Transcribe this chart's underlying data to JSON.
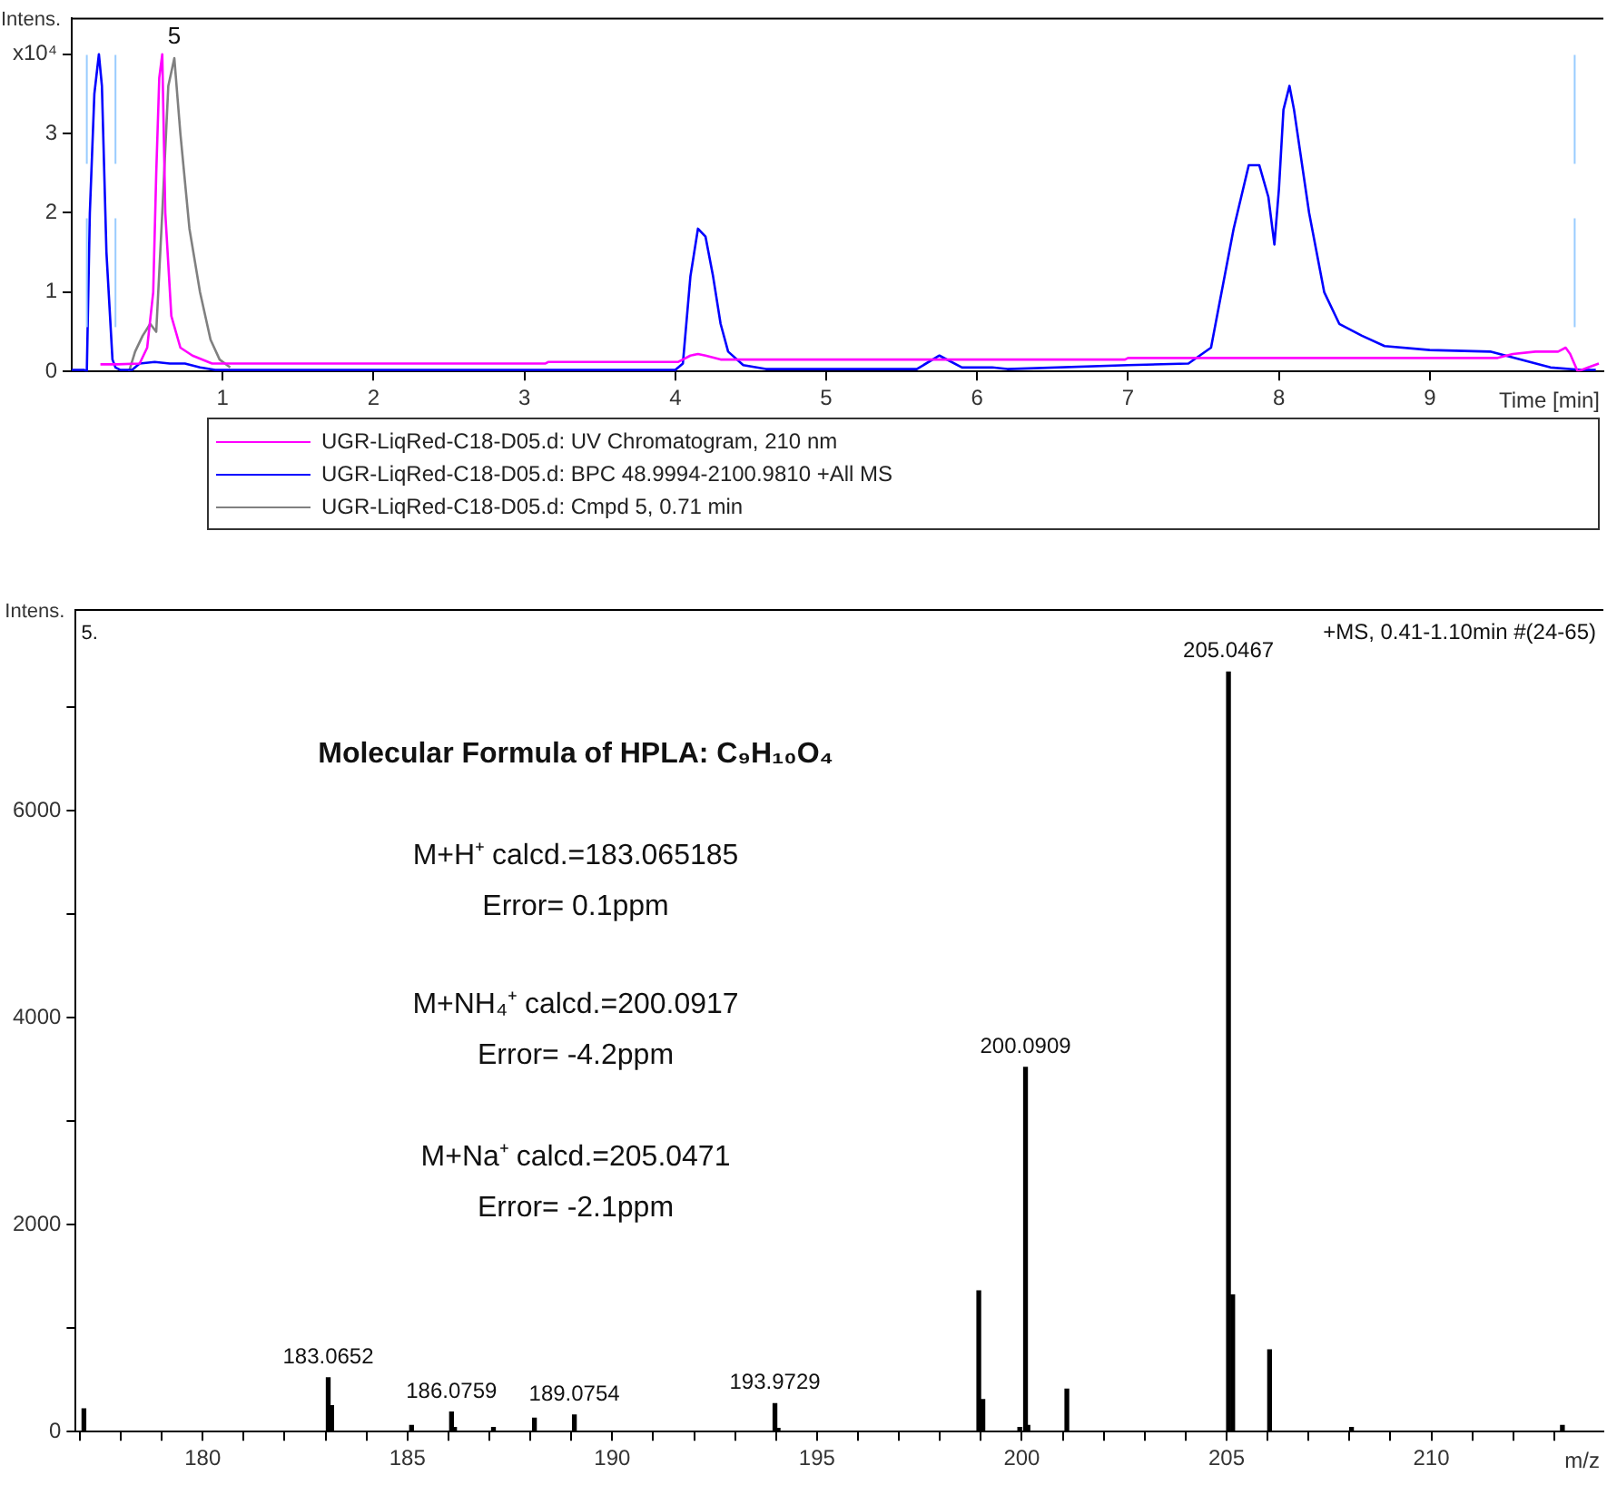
{
  "chart_data": [
    {
      "type": "line",
      "ylabel": "Intens.",
      "xlabel": "Time [min]",
      "xlim": [
        0,
        10.15
      ],
      "ylim": [
        0,
        4.45
      ],
      "xticks": [
        1,
        2,
        3,
        4,
        5,
        6,
        7,
        8,
        9
      ],
      "yticks": [
        0,
        1,
        2,
        3,
        {
          "value": 4,
          "label": "x10⁴"
        }
      ],
      "grid": false,
      "legend": "bottom",
      "annotations": [
        {
          "text": "5",
          "x": 0.68,
          "y": 3.95
        }
      ],
      "ref_lines": [
        {
          "axis": "x",
          "value": 0.1,
          "color": "#99ccff",
          "line_style": "dashed"
        },
        {
          "axis": "x",
          "value": 0.29,
          "color": "#99ccff",
          "line_style": "dashed"
        },
        {
          "axis": "x",
          "value": 9.96,
          "color": "#99ccff",
          "line_style": "dashed"
        }
      ],
      "series": [
        {
          "name": "UGR-LiqRed-C18-D05.d: UV Chromatogram, 210 nm",
          "color": "#ff00ff",
          "x": [
            0.19,
            0.3,
            0.45,
            0.5,
            0.54,
            0.56,
            0.58,
            0.6,
            0.62,
            0.66,
            0.72,
            0.8,
            0.93,
            1.1,
            3.14,
            3.16,
            4.02,
            4.1,
            4.15,
            4.2,
            4.3,
            4.4,
            6.98,
            7.0,
            9.45,
            9.55,
            9.7,
            9.85,
            9.9,
            9.93,
            9.98,
            10.05,
            10.12
          ],
          "values": [
            0.09,
            0.09,
            0.1,
            0.3,
            1.0,
            2.5,
            3.7,
            4.0,
            2.0,
            0.7,
            0.3,
            0.2,
            0.1,
            0.1,
            0.1,
            0.12,
            0.12,
            0.2,
            0.22,
            0.2,
            0.15,
            0.15,
            0.15,
            0.17,
            0.17,
            0.22,
            0.25,
            0.25,
            0.3,
            0.22,
            0.0,
            0.05,
            0.1
          ]
        },
        {
          "name": "UGR-LiqRed-C18-D05.d: BPC 48.9994-2100.9810 +All MS",
          "color": "#0000ff",
          "x": [
            0.0,
            0.08,
            0.1,
            0.12,
            0.15,
            0.18,
            0.2,
            0.23,
            0.27,
            0.29,
            0.32,
            0.4,
            0.45,
            0.55,
            0.65,
            0.75,
            0.85,
            0.95,
            1.5,
            4.0,
            4.05,
            4.1,
            4.15,
            4.2,
            4.25,
            4.3,
            4.35,
            4.45,
            4.6,
            5.6,
            5.75,
            5.9,
            6.1,
            6.2,
            7.0,
            7.4,
            7.55,
            7.6,
            7.7,
            7.8,
            7.87,
            7.93,
            7.97,
            8.0,
            8.03,
            8.07,
            8.1,
            8.2,
            8.3,
            8.4,
            8.55,
            8.7,
            9.0,
            9.4,
            9.6,
            9.8,
            10.0,
            10.1
          ],
          "values": [
            0.02,
            0.02,
            0.0,
            2.0,
            3.5,
            4.0,
            3.6,
            1.5,
            0.15,
            0.05,
            0.02,
            0.02,
            0.1,
            0.12,
            0.1,
            0.1,
            0.05,
            0.02,
            0.02,
            0.02,
            0.1,
            1.2,
            1.8,
            1.7,
            1.2,
            0.6,
            0.25,
            0.08,
            0.03,
            0.03,
            0.2,
            0.05,
            0.05,
            0.03,
            0.08,
            0.1,
            0.3,
            0.8,
            1.8,
            2.6,
            2.6,
            2.2,
            1.6,
            2.3,
            3.3,
            3.6,
            3.3,
            2.0,
            1.0,
            0.6,
            0.45,
            0.32,
            0.27,
            0.25,
            0.15,
            0.05,
            0.02,
            0.02
          ]
        },
        {
          "name": "UGR-LiqRed-C18-D05.d: Cmpd 5, 0.71 min",
          "color": "#808080",
          "x": [
            0.38,
            0.42,
            0.47,
            0.52,
            0.56,
            0.6,
            0.64,
            0.68,
            0.72,
            0.78,
            0.85,
            0.92,
            0.98,
            1.05
          ],
          "values": [
            0.0,
            0.25,
            0.45,
            0.6,
            0.5,
            2.0,
            3.6,
            3.95,
            3.0,
            1.8,
            1.0,
            0.4,
            0.15,
            0.05
          ]
        }
      ]
    },
    {
      "type": "bar",
      "ylabel": "Intens.",
      "xlabel": "m/z",
      "xlim": [
        176.9,
        214.2
      ],
      "ylim": [
        0,
        7940
      ],
      "xticks": [
        {
          "value": 177,
          "label": null
        },
        {
          "value": 178,
          "label": null
        },
        {
          "value": 179,
          "label": null
        },
        180,
        {
          "value": 181,
          "label": null
        },
        {
          "value": 182,
          "label": null
        },
        {
          "value": 183,
          "label": null
        },
        {
          "value": 184,
          "label": null
        },
        185,
        {
          "value": 186,
          "label": null
        },
        {
          "value": 187,
          "label": null
        },
        {
          "value": 188,
          "label": null
        },
        {
          "value": 189,
          "label": null
        },
        190,
        {
          "value": 191,
          "label": null
        },
        {
          "value": 192,
          "label": null
        },
        {
          "value": 193,
          "label": null
        },
        {
          "value": 194,
          "label": null
        },
        195,
        {
          "value": 196,
          "label": null
        },
        {
          "value": 197,
          "label": null
        },
        {
          "value": 198,
          "label": null
        },
        {
          "value": 199,
          "label": null
        },
        200,
        {
          "value": 201,
          "label": null
        },
        {
          "value": 202,
          "label": null
        },
        {
          "value": 203,
          "label": null
        },
        {
          "value": 204,
          "label": null
        },
        205,
        {
          "value": 206,
          "label": null
        },
        {
          "value": 207,
          "label": null
        },
        {
          "value": 208,
          "label": null
        },
        {
          "value": 209,
          "label": null
        },
        210,
        {
          "value": 211,
          "label": null
        },
        {
          "value": 212,
          "label": null
        },
        {
          "value": 213,
          "label": null
        }
      ],
      "yticks": [
        0,
        {
          "value": 1000,
          "label": null
        },
        2000,
        {
          "value": 3000,
          "label": null
        },
        4000,
        {
          "value": 5000,
          "label": null
        },
        6000,
        {
          "value": 7000,
          "label": null
        }
      ],
      "grid": false,
      "annotations": [
        "5.",
        "+MS, 0.41-1.10min #(24-65)",
        "Molecular Formula of HPLA: C₉H₁₀O₄",
        "M+H⁺ calcd.=183.065185",
        "Error= 0.1ppm",
        "M+NH₄⁺ calcd.=200.0917",
        "Error= -4.2ppm",
        "M+Na⁺ calcd.=205.0471",
        "Error= -2.1ppm",
        {
          "text": "183.0652",
          "x": 183.0652,
          "y": 520
        },
        {
          "text": "186.0759",
          "x": 186.0759,
          "y": 190
        },
        {
          "text": "189.0754",
          "x": 189.0754,
          "y": 160
        },
        {
          "text": "193.9729",
          "x": 193.9729,
          "y": 270
        },
        {
          "text": "200.0909",
          "x": 200.0909,
          "y": 3520
        },
        {
          "text": "205.0467",
          "x": 205.0467,
          "y": 7340
        }
      ],
      "color": "#000000",
      "x": [
        177.1,
        183.0652,
        183.15,
        185.1,
        186.0759,
        186.15,
        187.1,
        188.1,
        189.0754,
        193.9729,
        194.05,
        198.95,
        199.05,
        199.95,
        200.0909,
        200.15,
        201.1,
        205.0467,
        205.15,
        206.05,
        208.05,
        213.2
      ],
      "values": [
        220,
        520,
        250,
        60,
        190,
        40,
        40,
        130,
        160,
        270,
        30,
        1360,
        310,
        40,
        3520,
        60,
        410,
        7340,
        1320,
        790,
        40,
        60
      ]
    }
  ]
}
